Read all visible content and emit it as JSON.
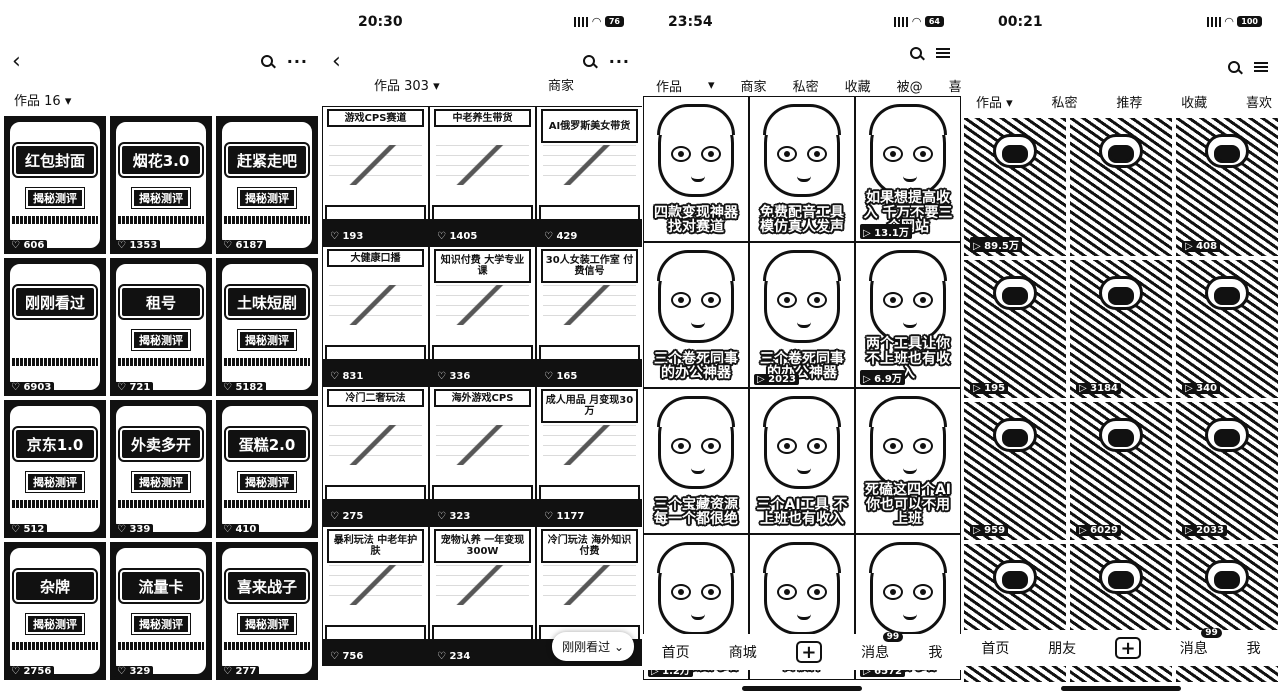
{
  "panel1": {
    "works_tab": "作品 16",
    "cards": [
      {
        "title": "红包封面",
        "tag": "揭秘测评",
        "likes": "606"
      },
      {
        "title": "烟花3.0",
        "tag": "揭秘测评",
        "likes": "1353"
      },
      {
        "title": "赶紧走吧",
        "tag": "揭秘测评",
        "likes": "6187"
      },
      {
        "title": "刚刚看过",
        "tag": "",
        "likes": "6903"
      },
      {
        "title": "租号",
        "tag": "揭秘测评",
        "likes": "721"
      },
      {
        "title": "土味短剧",
        "tag": "揭秘测评",
        "likes": "5182"
      },
      {
        "title": "京东1.0",
        "tag": "揭秘测评",
        "likes": "512"
      },
      {
        "title": "外卖多开",
        "tag": "揭秘测评",
        "likes": "339"
      },
      {
        "title": "蛋糕2.0",
        "tag": "揭秘测评",
        "likes": "410"
      },
      {
        "title": "杂牌",
        "tag": "揭秘测评",
        "likes": "2756"
      },
      {
        "title": "流量卡",
        "tag": "揭秘测评",
        "likes": "329"
      },
      {
        "title": "喜来战子",
        "tag": "揭秘测评",
        "likes": "277"
      }
    ]
  },
  "panel2": {
    "time": "20:30",
    "battery": "76",
    "works_tab": "作品 303",
    "shop_tab": "商家",
    "cards": [
      {
        "title": "游戏CPS赛道",
        "likes": "193"
      },
      {
        "title": "中老养生带货",
        "likes": "1405"
      },
      {
        "title": "AI俄罗斯美女带货",
        "likes": "429"
      },
      {
        "title": "大健康口播",
        "likes": "831"
      },
      {
        "title": "知识付费 大学专业课",
        "likes": "336"
      },
      {
        "title": "30人女装工作室 付费信号",
        "likes": "165"
      },
      {
        "title": "冷门二奢玩法",
        "likes": "275"
      },
      {
        "title": "海外游戏CPS",
        "likes": "323"
      },
      {
        "title": "成人用品 月变现30万",
        "likes": "1177"
      },
      {
        "title": "暴利玩法 中老年护肤",
        "likes": "756"
      },
      {
        "title": "宠物认养 一年变现300W",
        "likes": "234"
      },
      {
        "title": "冷门玩法 海外知识付费",
        "likes": ""
      }
    ],
    "floating_label": "刚刚看过"
  },
  "panel3": {
    "time": "23:54",
    "battery": "64",
    "tabs": [
      "作品",
      "商家",
      "私密",
      "收藏",
      "被@",
      "喜"
    ],
    "cards": [
      {
        "caption": "四款变现神器 找对赛道",
        "likes": ""
      },
      {
        "caption": "免费配音工具 模仿真人发声",
        "likes": ""
      },
      {
        "caption": "如果想提高收入 千万不要三个网站",
        "likes": "13.1万"
      },
      {
        "caption": "三个卷死同事的办公神器",
        "likes": ""
      },
      {
        "caption": "三个卷死同事的办公神器",
        "likes": "2023"
      },
      {
        "caption": "两个工具让你不上班也有收入",
        "likes": "6.9万"
      },
      {
        "caption": "三个宝藏资源 每一个都很绝",
        "likes": ""
      },
      {
        "caption": "三个AI工具 不上班也有收入",
        "likes": ""
      },
      {
        "caption": "死磕这四个AI 你也可以不用上班",
        "likes": ""
      },
      {
        "caption": "三个动漫网站",
        "likes": "1.2万"
      },
      {
        "caption": "免费的 自动剪辑软件",
        "likes": ""
      },
      {
        "caption": "两个让你 搞钱了的网站",
        "likes": "6572"
      }
    ],
    "bottom_nav": [
      "首页",
      "商城",
      "+",
      "消息",
      "我"
    ],
    "badge": "99"
  },
  "panel4": {
    "time": "00:21",
    "battery": "100",
    "tabs": [
      "作品",
      "私密",
      "推荐",
      "收藏",
      "喜欢"
    ],
    "cards": [
      {
        "likes": "89.5万"
      },
      {
        "likes": ""
      },
      {
        "likes": "408"
      },
      {
        "likes": "195"
      },
      {
        "likes": "3184"
      },
      {
        "likes": "340"
      },
      {
        "likes": "959"
      },
      {
        "likes": "6029"
      },
      {
        "likes": "2033"
      },
      {
        "likes": ""
      },
      {
        "likes": ""
      },
      {
        "likes": ""
      }
    ],
    "bottom_nav": [
      "首页",
      "朋友",
      "+",
      "消息",
      "我"
    ],
    "badge": "99"
  }
}
